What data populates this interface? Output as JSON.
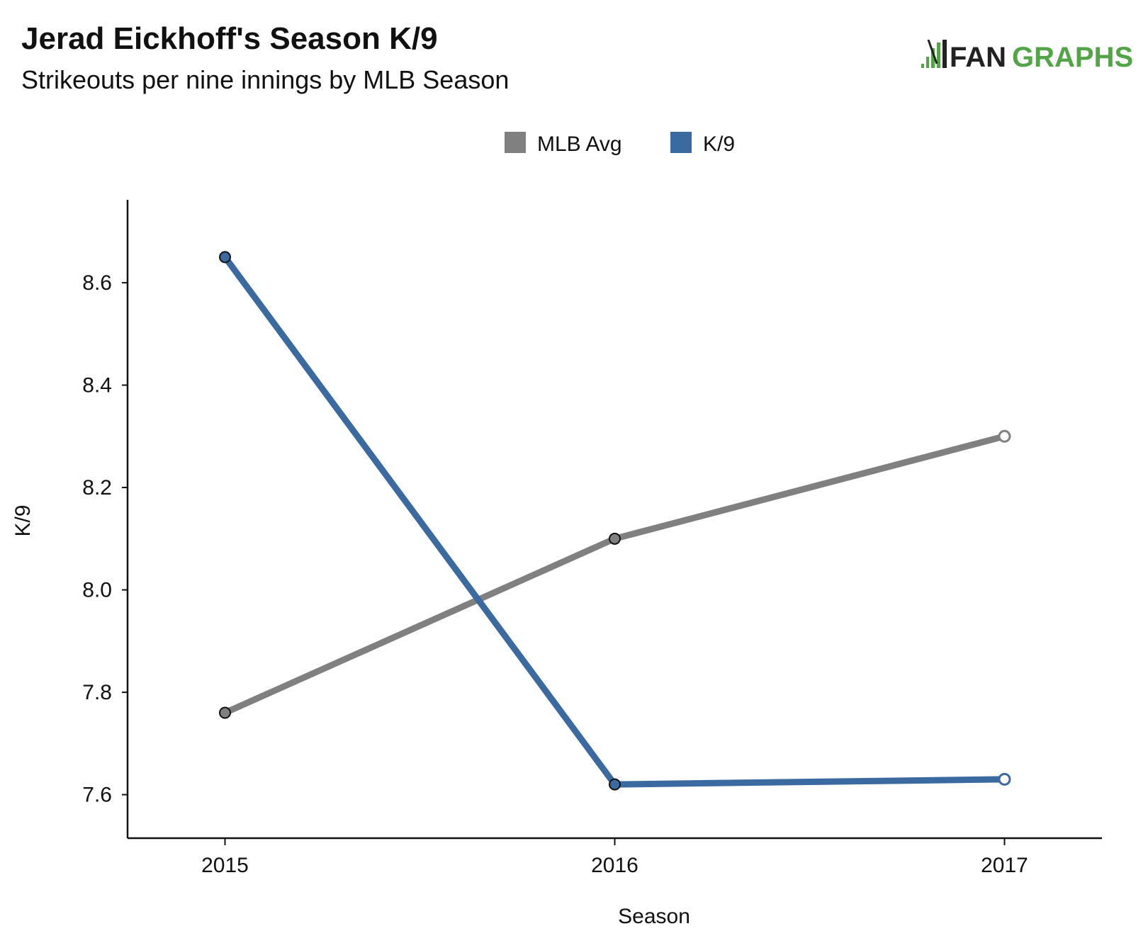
{
  "header": {
    "title": "Jerad Eickhoff's Season K/9",
    "subtitle": "Strikeouts per nine innings by MLB Season",
    "logo_text_dark": "FAN",
    "logo_text_green": "GRAPHS"
  },
  "colors": {
    "mlb_avg": "#808080",
    "k9": "#3a6aa0",
    "logo_green": "#52a447",
    "logo_dark": "#222222"
  },
  "chart_data": {
    "type": "line",
    "title": "Jerad Eickhoff's Season K/9",
    "subtitle": "Strikeouts per nine innings by MLB Season",
    "xlabel": "Season",
    "ylabel": "K/9",
    "x": [
      2015,
      2016,
      2017
    ],
    "x_tick_labels": [
      "2015",
      "2016",
      "2017"
    ],
    "y_ticks": [
      7.6,
      7.8,
      8.0,
      8.2,
      8.4,
      8.6
    ],
    "y_tick_labels": [
      "7.6",
      "7.8",
      "8.0",
      "8.2",
      "8.4",
      "8.6"
    ],
    "xlim": [
      2014.75,
      2017.25
    ],
    "ylim": [
      7.515,
      8.762
    ],
    "legend_position": "top-center",
    "grid": false,
    "series": [
      {
        "name": "MLB Avg",
        "color": "#808080",
        "values": [
          7.76,
          8.1,
          8.3
        ]
      },
      {
        "name": "K/9",
        "color": "#3a6aa0",
        "values": [
          8.65,
          7.62,
          7.63
        ]
      }
    ]
  }
}
